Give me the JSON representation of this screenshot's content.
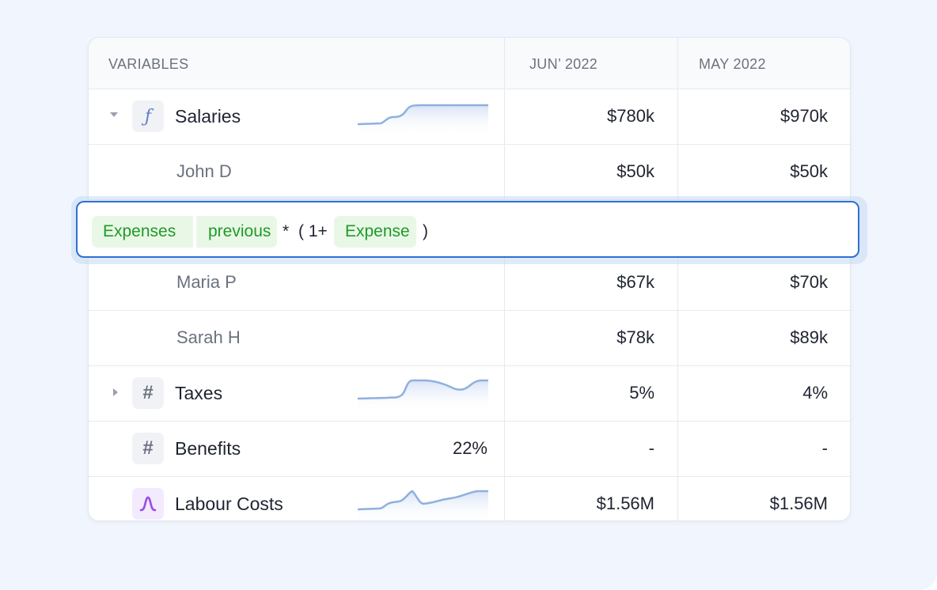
{
  "table": {
    "headers": {
      "variables": "VARIABLES",
      "col1": "JUN’ 2022",
      "col2": "MAY 2022"
    },
    "rows": [
      {
        "label": "Salaries",
        "icon": "function-icon",
        "expanded": true,
        "col1": "$780k",
        "col2": "$970k"
      },
      {
        "label": "John D",
        "col1": "$50k",
        "col2": "$50k"
      },
      {
        "label": "Maria P",
        "col1": "$67k",
        "col2": "$70k"
      },
      {
        "label": "Sarah H",
        "col1": "$78k",
        "col2": "$89k"
      },
      {
        "label": "Taxes",
        "icon": "hash-icon",
        "expanded": false,
        "col1": "5%",
        "col2": "4%"
      },
      {
        "label": "Benefits",
        "icon": "hash-icon",
        "inline_value": "22%",
        "col1": "-",
        "col2": "-"
      },
      {
        "label": "Labour Costs",
        "icon": "pulse-icon",
        "col1": "$1.56M",
        "col2": "$1.56M"
      }
    ]
  },
  "formula": {
    "chip1": "Expenses",
    "chip2": "previous",
    "op1": "*",
    "op2": "( 1+",
    "chip3": "Expense",
    "op3": ")"
  },
  "colors": {
    "accent": "#2f6fd1",
    "chip_text": "#1e9a27",
    "chip_bg": "#e9f8e6",
    "sparkline": "#8fb0e0",
    "purple_icon": "#9b4de0"
  }
}
